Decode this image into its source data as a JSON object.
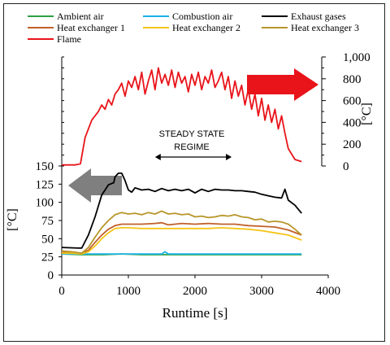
{
  "chart_data": {
    "type": "line",
    "xlabel": "Runtime [s]",
    "x_ticks": [
      "0",
      "1000",
      "2000",
      "3000",
      "4000"
    ],
    "xlim": [
      0,
      4000
    ],
    "left_axis": {
      "unit": "[°C]",
      "ticks": [
        "0",
        "25",
        "50",
        "75",
        "100",
        "125",
        "150"
      ],
      "ylim": [
        0,
        150
      ],
      "arrow_color": "#7f7f7f"
    },
    "right_axis": {
      "unit": "[°C]",
      "ticks": [
        "0",
        "200",
        "400",
        "600",
        "800",
        "1,000"
      ],
      "ylim": [
        0,
        1000
      ],
      "arrow_color": "#e8141a"
    },
    "annotation": [
      "STEADY STATE",
      "REGIME"
    ],
    "annotation_range": [
      1400,
      2550
    ],
    "grid": false,
    "legend_position": "top",
    "series": [
      {
        "name": "Ambient air",
        "axis": "left",
        "color": "#2ea043",
        "x": [
          0,
          300,
          600,
          900,
          1200,
          1500,
          1800,
          2100,
          2400,
          2700,
          3000,
          3300,
          3600
        ],
        "y": [
          29,
          28,
          28,
          29,
          28,
          28,
          28,
          28,
          28,
          28,
          28,
          28,
          28
        ]
      },
      {
        "name": "Combustion air",
        "axis": "left",
        "color": "#1ab2e6",
        "x": [
          0,
          300,
          600,
          900,
          1200,
          1500,
          1550,
          1600,
          1800,
          2100,
          2400,
          2700,
          3000,
          3300,
          3600
        ],
        "y": [
          29,
          29,
          29,
          29,
          29,
          29,
          32,
          29,
          29,
          29,
          29,
          29,
          29,
          29,
          29
        ]
      },
      {
        "name": "Exhaust gases",
        "axis": "left",
        "color": "#000000",
        "x": [
          0,
          250,
          300,
          400,
          500,
          600,
          700,
          780,
          800,
          850,
          900,
          950,
          1000,
          1050,
          1100,
          1200,
          1300,
          1400,
          1500,
          1600,
          1700,
          1800,
          1900,
          2000,
          2100,
          2200,
          2300,
          2400,
          2500,
          2600,
          2700,
          2800,
          2900,
          3000,
          3100,
          3200,
          3300,
          3350,
          3400,
          3500,
          3600
        ],
        "y": [
          38,
          37,
          37,
          55,
          80,
          110,
          124,
          127,
          135,
          140,
          140,
          130,
          117,
          114,
          120,
          117,
          118,
          115,
          119,
          116,
          118,
          116,
          118,
          113,
          118,
          115,
          118,
          117,
          117,
          116,
          116,
          115,
          114,
          111,
          109,
          107,
          106,
          118,
          103,
          96,
          85
        ]
      },
      {
        "name": "Heat exchanger 1",
        "axis": "left",
        "color": "#c0602a",
        "x": [
          0,
          150,
          300,
          400,
          500,
          600,
          700,
          800,
          900,
          1000,
          1200,
          1400,
          1500,
          1600,
          1800,
          2000,
          2200,
          2400,
          2600,
          2800,
          3000,
          3200,
          3400,
          3600
        ],
        "y": [
          32,
          31,
          30,
          34,
          45,
          55,
          63,
          68,
          70,
          70,
          70,
          71,
          72,
          69,
          71,
          70,
          71,
          70,
          70,
          68,
          67,
          66,
          62,
          55
        ]
      },
      {
        "name": "Heat exchanger 2",
        "axis": "left",
        "color": "#f5c518",
        "x": [
          0,
          150,
          300,
          400,
          500,
          600,
          700,
          800,
          900,
          1000,
          1200,
          1400,
          1600,
          1800,
          2000,
          2200,
          2400,
          2600,
          2800,
          3000,
          3200,
          3400,
          3600
        ],
        "y": [
          30,
          30,
          29,
          32,
          40,
          50,
          58,
          64,
          65,
          65,
          64,
          64,
          64,
          64,
          64,
          64,
          65,
          64,
          63,
          61,
          58,
          55,
          48
        ]
      },
      {
        "name": "Heat exchanger 3",
        "axis": "left",
        "color": "#b8962a",
        "x": [
          0,
          150,
          300,
          400,
          500,
          600,
          700,
          800,
          900,
          1000,
          1100,
          1200,
          1300,
          1400,
          1500,
          1600,
          1700,
          1800,
          1900,
          2000,
          2100,
          2200,
          2300,
          2400,
          2500,
          2600,
          2700,
          2800,
          2900,
          3000,
          3100,
          3200,
          3300,
          3400,
          3500,
          3600
        ],
        "y": [
          33,
          32,
          30,
          38,
          52,
          65,
          75,
          83,
          86,
          84,
          85,
          83,
          86,
          84,
          88,
          84,
          85,
          83,
          84,
          80,
          81,
          79,
          80,
          82,
          81,
          83,
          80,
          79,
          76,
          77,
          73,
          74,
          73,
          70,
          63,
          55
        ]
      },
      {
        "name": "Flame",
        "axis": "right",
        "color": "#e8141a",
        "x": [
          0,
          200,
          280,
          350,
          450,
          550,
          600,
          650,
          700,
          750,
          800,
          850,
          900,
          950,
          1000,
          1050,
          1100,
          1150,
          1200,
          1250,
          1300,
          1350,
          1400,
          1450,
          1500,
          1550,
          1600,
          1650,
          1700,
          1750,
          1800,
          1850,
          1900,
          1950,
          2000,
          2050,
          2100,
          2150,
          2200,
          2250,
          2300,
          2350,
          2400,
          2450,
          2500,
          2550,
          2600,
          2650,
          2700,
          2750,
          2800,
          2850,
          2900,
          2950,
          3000,
          3050,
          3100,
          3150,
          3200,
          3250,
          3300,
          3350,
          3400,
          3500,
          3600
        ],
        "y": [
          10,
          10,
          20,
          260,
          420,
          500,
          560,
          520,
          610,
          560,
          660,
          700,
          760,
          640,
          780,
          720,
          820,
          700,
          860,
          660,
          780,
          880,
          700,
          900,
          760,
          840,
          740,
          880,
          720,
          860,
          760,
          820,
          680,
          840,
          740,
          860,
          700,
          820,
          760,
          880,
          720,
          780,
          860,
          700,
          820,
          620,
          780,
          640,
          740,
          560,
          700,
          520,
          660,
          460,
          620,
          420,
          560,
          400,
          520,
          340,
          460,
          300,
          160,
          60,
          40
        ]
      }
    ]
  }
}
